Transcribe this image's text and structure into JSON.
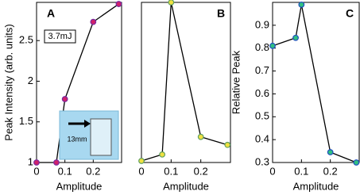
{
  "chart_data": [
    {
      "type": "line",
      "panel_label": "A",
      "annotation": "3.7mJ",
      "inset_label": "13mm",
      "y_label": "Peak Intensity (arb. units)",
      "x_label": "Amplitude",
      "x": [
        0,
        0.07,
        0.1,
        0.2,
        0.29
      ],
      "series": [
        {
          "values": [
            1,
            1,
            1.78,
            2.73,
            2.95
          ],
          "color": "#000000",
          "marker_color": "#d0206a",
          "marker_edge": "#7a2aa0"
        }
      ],
      "xlim": [
        0,
        0.3
      ],
      "xticks": [
        0,
        0.1,
        0.2
      ],
      "ylim": [
        1,
        2.97
      ],
      "yticks": [
        1,
        1.5,
        2,
        2.5
      ]
    },
    {
      "type": "line",
      "panel_label": "B",
      "x_label": "Amplitude",
      "x": [
        0,
        0.07,
        0.1,
        0.2,
        0.29
      ],
      "series": [
        {
          "values": [
            0.01,
            0.05,
            1,
            0.16,
            0.11
          ],
          "color": "#000000",
          "marker_color": "#f0e040",
          "marker_edge": "#60a060"
        }
      ],
      "xlim": [
        0,
        0.3
      ],
      "xticks": [
        0,
        0.1,
        0.2
      ],
      "ylim": [
        0,
        1
      ]
    },
    {
      "type": "line",
      "panel_label": "C",
      "y_label": "Relative Peak",
      "x_label": "Amplitude",
      "x": [
        0,
        0.08,
        0.1,
        0.2,
        0.29
      ],
      "series": [
        {
          "values": [
            0.81,
            0.845,
            0.99,
            0.345,
            0.3
          ],
          "color": "#000000",
          "marker_color": "#30c080",
          "marker_edge": "#2050c0"
        }
      ],
      "xlim": [
        0,
        0.3
      ],
      "xticks": [
        0,
        0.1,
        0.2
      ],
      "ylim": [
        0.3,
        1
      ],
      "yticks": [
        0.3,
        0.4,
        0.5,
        0.6,
        0.7,
        0.8,
        0.9
      ]
    }
  ]
}
